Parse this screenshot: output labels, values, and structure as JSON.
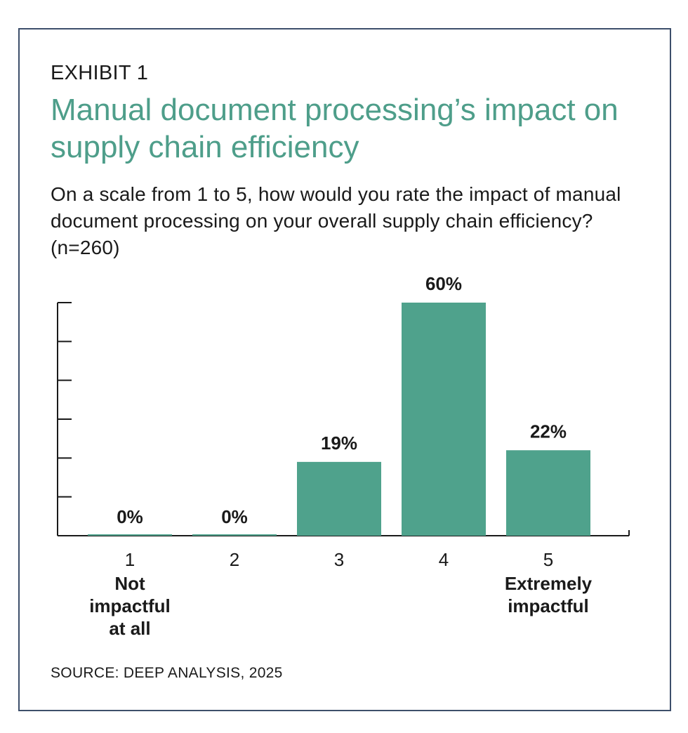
{
  "header": {
    "exhibit": "EXHIBIT 1",
    "title": "Manual document processing’s impact on supply chain efficiency",
    "subtitle": "On a scale from 1 to 5, how would you rate the impact of manual document processing on your overall supply chain efficiency? (n=260)"
  },
  "source": "SOURCE: DEEP ANALYSIS, 2025",
  "colors": {
    "bar": "#4fa28c",
    "title": "#4e9e8a",
    "frame": "#3d4f6b",
    "axis": "#1a1a1a"
  },
  "chart_data": {
    "type": "bar",
    "categories": [
      "1",
      "2",
      "3",
      "4",
      "5"
    ],
    "category_descriptions": [
      [
        "Not",
        "impactful",
        "at all"
      ],
      [],
      [],
      [],
      [
        "Extremely",
        "impactful"
      ]
    ],
    "values": [
      0,
      0,
      19,
      60,
      22
    ],
    "data_labels": [
      "0%",
      "0%",
      "19%",
      "60%",
      "22%"
    ],
    "ylim": [
      0,
      60
    ],
    "ytick_count": 7,
    "grid": false,
    "legend": "none"
  }
}
